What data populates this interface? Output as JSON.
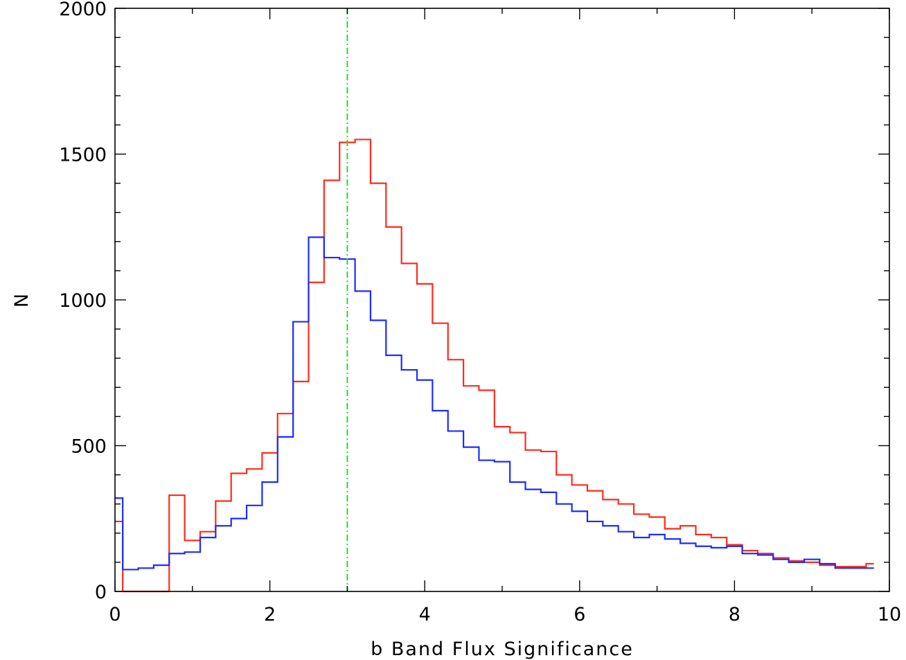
{
  "chart_data": {
    "type": "line",
    "step": true,
    "xlabel": "b Band Flux Significance",
    "ylabel": "N",
    "xlim": [
      0,
      10
    ],
    "ylim": [
      0,
      2000
    ],
    "x_ticks": [
      0,
      2,
      4,
      6,
      8,
      10
    ],
    "x_tick_labels": [
      "0",
      "2",
      "4",
      "6",
      "8",
      "10"
    ],
    "y_ticks": [
      0,
      500,
      1000,
      1500,
      2000
    ],
    "y_tick_labels": [
      "0",
      "500",
      "1000",
      "1500",
      "2000"
    ],
    "bin_edges": [
      0,
      0.1,
      0.3,
      0.5,
      0.7,
      0.9,
      1.1,
      1.3,
      1.5,
      1.7,
      1.9,
      2.1,
      2.3,
      2.5,
      2.7,
      2.9,
      3.1,
      3.3,
      3.5,
      3.7,
      3.9,
      4.1,
      4.3,
      4.5,
      4.7,
      4.9,
      5.1,
      5.3,
      5.5,
      5.7,
      5.9,
      6.1,
      6.3,
      6.5,
      6.7,
      6.9,
      7.1,
      7.3,
      7.5,
      7.7,
      7.9,
      8.1,
      8.3,
      8.5,
      8.7,
      8.9,
      9.1,
      9.3,
      9.5,
      9.7,
      9.8
    ],
    "series": [
      {
        "color": "#ff2a1a",
        "values": [
          240,
          0,
          0,
          0,
          330,
          175,
          205,
          310,
          405,
          420,
          475,
          610,
          720,
          1060,
          1410,
          1540,
          1550,
          1400,
          1250,
          1125,
          1055,
          920,
          795,
          705,
          690,
          565,
          545,
          485,
          480,
          400,
          365,
          345,
          315,
          300,
          265,
          255,
          215,
          225,
          195,
          185,
          160,
          140,
          130,
          115,
          105,
          100,
          90,
          85,
          85,
          95
        ]
      },
      {
        "color": "#1a2cff",
        "values": [
          320,
          75,
          80,
          90,
          130,
          135,
          185,
          225,
          250,
          295,
          375,
          530,
          925,
          1215,
          1145,
          1140,
          1030,
          930,
          810,
          760,
          725,
          620,
          550,
          495,
          450,
          445,
          375,
          350,
          340,
          300,
          275,
          240,
          225,
          205,
          185,
          195,
          180,
          165,
          155,
          150,
          155,
          130,
          125,
          110,
          100,
          110,
          95,
          80,
          80,
          80
        ]
      }
    ],
    "reference_lines": [
      {
        "axis": "x",
        "value": 3.0,
        "color": "#22dd22",
        "style": "dash-dot"
      }
    ]
  }
}
